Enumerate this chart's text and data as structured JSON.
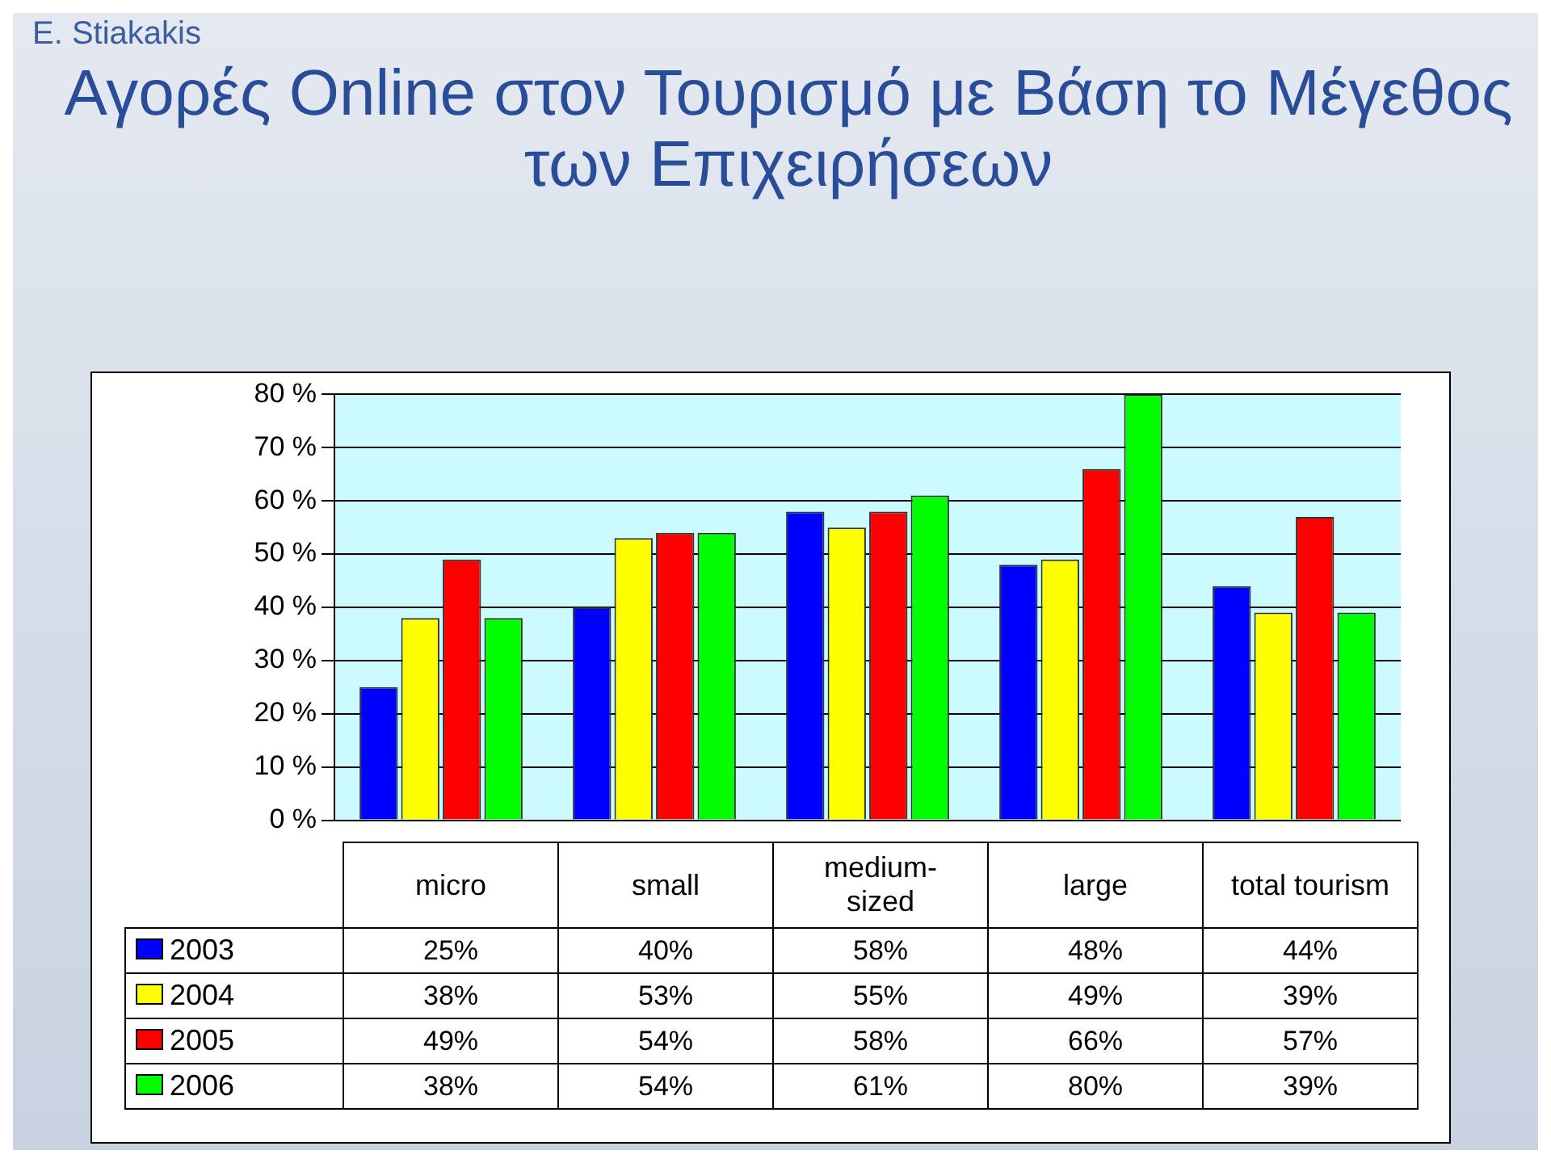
{
  "chart_data": {
    "type": "bar",
    "title": "Αγορές Online στον Τουρισμό με Βάση το Μέγεθος των Επιχειρήσεων",
    "annotations": [
      "E. Stiakakis"
    ],
    "categories": [
      "micro",
      "small",
      "medium-sized",
      "large",
      "total tourism"
    ],
    "series": [
      {
        "name": "2003",
        "color": "#0000ff",
        "values": [
          25,
          40,
          58,
          48,
          44
        ],
        "value_labels": [
          "25%",
          "40%",
          "58%",
          "48%",
          "44%"
        ]
      },
      {
        "name": "2004",
        "color": "#ffff00",
        "values": [
          38,
          53,
          55,
          49,
          39
        ],
        "value_labels": [
          "38%",
          "53%",
          "55%",
          "49%",
          "39%"
        ]
      },
      {
        "name": "2005",
        "color": "#ff0000",
        "values": [
          49,
          54,
          58,
          66,
          57
        ],
        "value_labels": [
          "49%",
          "54%",
          "58%",
          "66%",
          "57%"
        ]
      },
      {
        "name": "2006",
        "color": "#00ff00",
        "values": [
          38,
          54,
          61,
          80,
          39
        ],
        "value_labels": [
          "38%",
          "54%",
          "61%",
          "80%",
          "39%"
        ]
      }
    ],
    "ylim": [
      0,
      80
    ],
    "yticks": [
      {
        "value": 0,
        "label": "0 %"
      },
      {
        "value": 10,
        "label": "10 %"
      },
      {
        "value": 20,
        "label": "20 %"
      },
      {
        "value": 30,
        "label": "30 %"
      },
      {
        "value": 40,
        "label": "40 %"
      },
      {
        "value": 50,
        "label": "50 %"
      },
      {
        "value": 60,
        "label": "60 %"
      },
      {
        "value": 70,
        "label": "70 %"
      },
      {
        "value": 80,
        "label": "80 %"
      }
    ],
    "grid": "y",
    "legend": "bottom"
  }
}
